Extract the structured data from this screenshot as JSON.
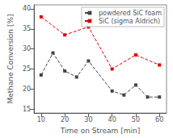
{
  "chart_data": {
    "type": "line",
    "xlabel": "Time on Stream [min]",
    "ylabel": "Methane Conversion [%]",
    "xlim": [
      7,
      63
    ],
    "ylim": [
      14,
      41
    ],
    "xticks": [
      10,
      20,
      30,
      40,
      50,
      60
    ],
    "yticks": [
      15,
      20,
      25,
      30,
      35,
      40
    ],
    "grid": false,
    "legend": "upper right",
    "series": [
      {
        "name": "SiC (sigma Aldrich)",
        "color": "#dd0000",
        "marker": "square",
        "line_style": "dashed",
        "x": [
          10,
          20,
          30,
          40,
          50,
          60
        ],
        "values": [
          38.0,
          33.5,
          35.5,
          25.0,
          28.5,
          26.0
        ]
      },
      {
        "name": "powdered SiC foam",
        "color": "#444444",
        "marker": "square",
        "line_style": "dashed",
        "x": [
          10,
          15,
          20,
          25,
          30,
          40,
          45,
          50,
          55,
          60
        ],
        "values": [
          23.5,
          29.0,
          24.5,
          23.0,
          27.0,
          19.5,
          18.5,
          21.0,
          18.0,
          18.0
        ]
      }
    ]
  }
}
